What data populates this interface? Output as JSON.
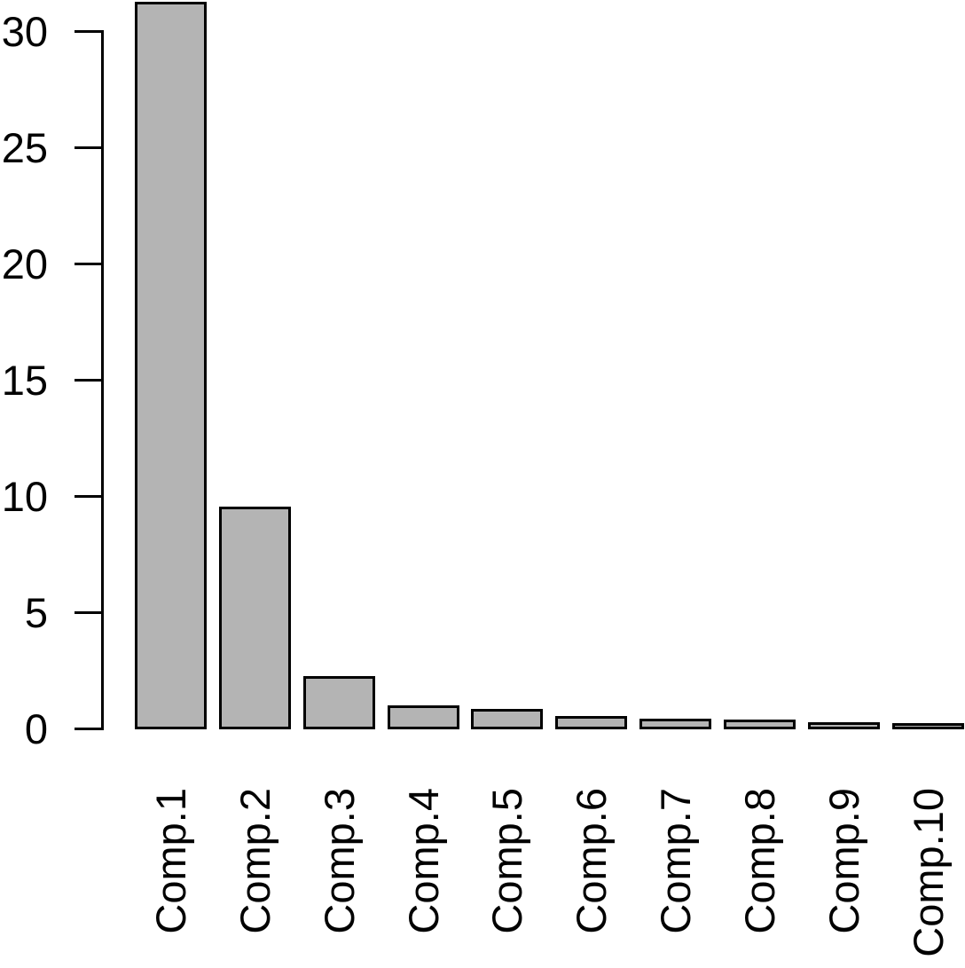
{
  "chart_data": {
    "type": "bar",
    "title": "",
    "xlabel": "",
    "ylabel": "",
    "categories": [
      "Comp.1",
      "Comp.2",
      "Comp.3",
      "Comp.4",
      "Comp.5",
      "Comp.6",
      "Comp.7",
      "Comp.8",
      "Comp.9",
      "Comp.10"
    ],
    "values": [
      31.2,
      9.5,
      2.2,
      0.95,
      0.77,
      0.46,
      0.38,
      0.34,
      0.22,
      0.16
    ],
    "yticks": [
      0,
      5,
      10,
      15,
      20,
      25,
      30
    ],
    "ylim": [
      0,
      31.3
    ],
    "x_tick_rotation": 90,
    "grid": "off",
    "legend": "none",
    "colors": {
      "bar_fill": "#b4b4b4",
      "bar_border": "#000000",
      "axis": "#000000",
      "text": "#000000",
      "background": "#ffffff"
    }
  }
}
